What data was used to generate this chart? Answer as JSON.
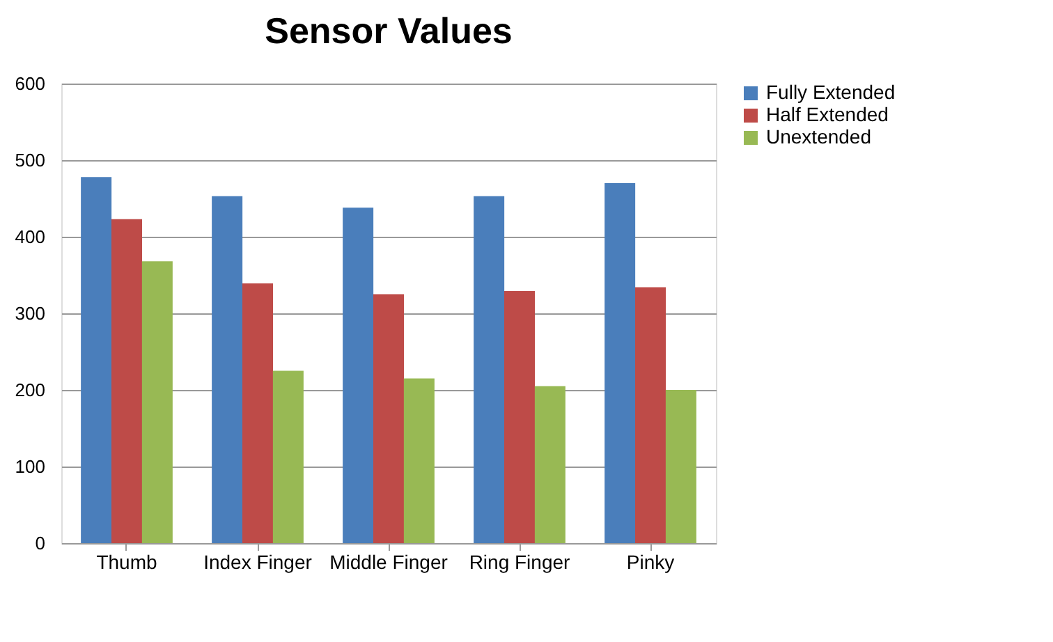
{
  "chart_data": {
    "type": "bar",
    "title": "Sensor Values",
    "categories": [
      "Thumb",
      "Index Finger",
      "Middle Finger",
      "Ring Finger",
      "Pinky"
    ],
    "series": [
      {
        "name": "Fully Extended",
        "color": "#4a7ebb",
        "values": [
          478,
          453,
          438,
          453,
          470
        ]
      },
      {
        "name": "Half Extended",
        "color": "#be4b48",
        "values": [
          423,
          339,
          325,
          329,
          334
        ]
      },
      {
        "name": "Unextended",
        "color": "#98b954",
        "values": [
          368,
          225,
          215,
          205,
          200
        ]
      }
    ],
    "ylim": [
      0,
      600
    ],
    "yticks": [
      0,
      100,
      200,
      300,
      400,
      500,
      600
    ],
    "grid": "y",
    "legend": "right"
  }
}
